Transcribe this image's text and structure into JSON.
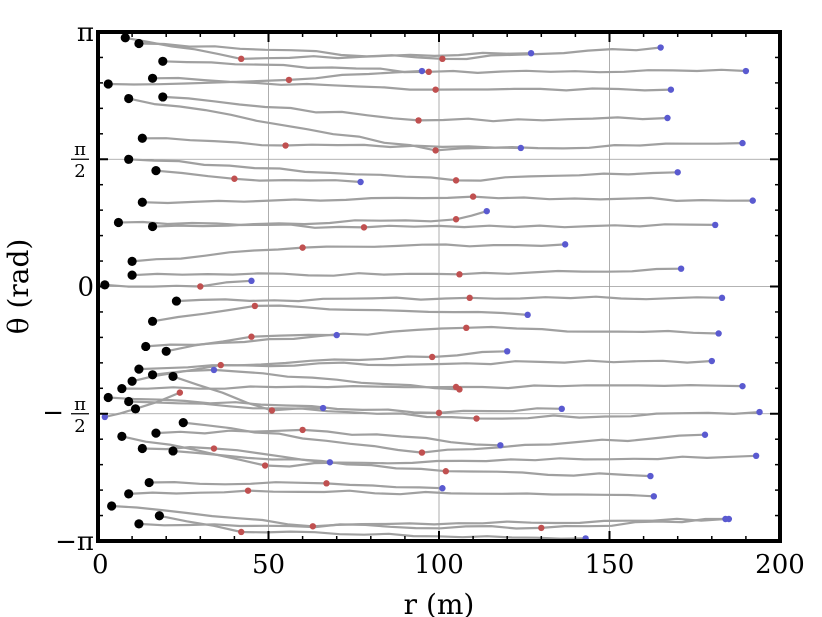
{
  "chart_data": {
    "type": "line",
    "xlabel": "r (m)",
    "ylabel": "θ (rad)",
    "xlim": [
      0,
      200
    ],
    "ylim": [
      -3.14159,
      3.14159
    ],
    "grid": true,
    "x_ticks": [
      {
        "value": 0,
        "label": "0"
      },
      {
        "value": 50,
        "label": "50"
      },
      {
        "value": 100,
        "label": "100"
      },
      {
        "value": 150,
        "label": "150"
      },
      {
        "value": 200,
        "label": "200"
      }
    ],
    "y_ticks": [
      {
        "value": 3.14159,
        "label": "π"
      },
      {
        "value": 1.5708,
        "label": "π/2",
        "num": "π",
        "den": "2"
      },
      {
        "value": 0,
        "label": "0"
      },
      {
        "value": -1.5708,
        "label": "−π/2",
        "num": "π",
        "den": "2",
        "sign": "−"
      },
      {
        "value": -3.14159,
        "label": "−π"
      }
    ],
    "colors": {
      "trajectory": "#a0a0a0",
      "start": "#000000",
      "mid": "#c05050",
      "end": "#5a5ad0",
      "grid": "#9a9a9a"
    },
    "trajectories": [
      {
        "start": [
          8,
          3.07
        ],
        "mid": [
          42,
          2.81
        ],
        "end": [
          127,
          2.88
        ]
      },
      {
        "start": [
          12,
          3.0
        ],
        "mid": [
          101,
          2.81
        ],
        "end": [
          165,
          2.95
        ]
      },
      {
        "start": [
          19,
          2.78
        ],
        "mid": [
          97,
          2.65
        ],
        "end": [
          190,
          2.66
        ]
      },
      {
        "start": [
          16,
          2.57
        ],
        "mid": [
          99,
          2.43
        ],
        "end": [
          168,
          2.43
        ]
      },
      {
        "start": [
          3,
          2.5
        ],
        "mid": [
          56,
          2.55
        ],
        "end": [
          95,
          2.66
        ]
      },
      {
        "start": [
          19,
          2.34
        ],
        "mid": [
          94,
          2.05
        ],
        "end": [
          167,
          2.08
        ]
      },
      {
        "start": [
          9,
          2.32
        ],
        "mid": [
          99,
          1.68
        ],
        "end": [
          189,
          1.77
        ]
      },
      {
        "start": [
          13,
          1.83
        ],
        "mid": [
          55,
          1.74
        ],
        "end": [
          124,
          1.71
        ]
      },
      {
        "start": [
          9,
          1.57
        ],
        "mid": [
          105,
          1.31
        ],
        "end": [
          170,
          1.41
        ]
      },
      {
        "start": [
          17,
          1.43
        ],
        "mid": [
          40,
          1.33
        ],
        "end": [
          77,
          1.29
        ]
      },
      {
        "start": [
          13,
          1.04
        ],
        "mid": [
          110,
          1.11
        ],
        "end": [
          192,
          1.06
        ]
      },
      {
        "start": [
          16,
          0.74
        ],
        "mid": [
          105,
          0.83
        ],
        "end": [
          114,
          0.93
        ]
      },
      {
        "start": [
          6,
          0.79
        ],
        "mid": [
          78,
          0.73
        ],
        "end": [
          181,
          0.76
        ]
      },
      {
        "start": [
          10,
          0.31
        ],
        "mid": [
          60,
          0.48
        ],
        "end": [
          137,
          0.52
        ]
      },
      {
        "start": [
          10,
          0.14
        ],
        "mid": [
          106,
          0.15
        ],
        "end": [
          171,
          0.22
        ]
      },
      {
        "start": [
          2,
          0.02
        ],
        "mid": [
          30,
          0.0
        ],
        "end": [
          45,
          0.07
        ]
      },
      {
        "start": [
          23,
          -0.18
        ],
        "mid": [
          109,
          -0.14
        ],
        "end": [
          183,
          -0.14
        ]
      },
      {
        "start": [
          16,
          -0.43
        ],
        "mid": [
          46,
          -0.24
        ],
        "end": [
          126,
          -0.35
        ]
      },
      {
        "start": [
          14,
          -0.74
        ],
        "mid": [
          108,
          -0.51
        ],
        "end": [
          182,
          -0.58
        ]
      },
      {
        "start": [
          20,
          -0.8
        ],
        "mid": [
          45,
          -0.62
        ],
        "end": [
          70,
          -0.6
        ]
      },
      {
        "start": [
          12,
          -1.02
        ],
        "mid": [
          98,
          -0.87
        ],
        "end": [
          120,
          -0.8
        ]
      },
      {
        "start": [
          10,
          -1.17
        ],
        "mid": [
          36,
          -0.97
        ],
        "end": [
          180,
          -0.92
        ]
      },
      {
        "start": [
          7,
          -1.26
        ],
        "mid": [
          105,
          -1.24
        ],
        "end": [
          189,
          -1.23
        ]
      },
      {
        "start": [
          16,
          -1.09
        ],
        "mid": [
          106,
          -1.27
        ],
        "end": [
          34,
          -1.03
        ]
      },
      {
        "start": [
          22,
          -1.11
        ],
        "mid": [
          51,
          -1.53
        ],
        "end": [
          66,
          -1.5
        ]
      },
      {
        "start": [
          3,
          -1.37
        ],
        "mid": [
          100,
          -1.56
        ],
        "end": [
          136,
          -1.51
        ]
      },
      {
        "start": [
          9,
          -1.42
        ],
        "mid": [
          111,
          -1.63
        ],
        "end": [
          194,
          -1.55
        ]
      },
      {
        "start": [
          11,
          -1.51
        ],
        "mid": [
          24,
          -1.31
        ],
        "end": [
          2,
          -1.61
        ]
      },
      {
        "start": [
          25,
          -1.68
        ],
        "mid": [
          95,
          -2.05
        ],
        "end": [
          178,
          -1.83
        ]
      },
      {
        "start": [
          17,
          -1.81
        ],
        "mid": [
          60,
          -1.77
        ],
        "end": [
          118,
          -1.96
        ]
      },
      {
        "start": [
          7,
          -1.85
        ],
        "mid": [
          49,
          -2.21
        ],
        "end": [
          193,
          -2.09
        ]
      },
      {
        "start": [
          13,
          -2.0
        ],
        "mid": [
          34,
          -2.0
        ],
        "end": [
          68,
          -2.17
        ]
      },
      {
        "start": [
          22,
          -2.03
        ],
        "mid": [
          102,
          -2.28
        ],
        "end": [
          162,
          -2.34
        ]
      },
      {
        "start": [
          15,
          -2.42
        ],
        "mid": [
          67,
          -2.43
        ],
        "end": [
          101,
          -2.49
        ]
      },
      {
        "start": [
          9,
          -2.56
        ],
        "mid": [
          44,
          -2.52
        ],
        "end": [
          163,
          -2.59
        ]
      },
      {
        "start": [
          4,
          -2.71
        ],
        "mid": [
          63,
          -2.96
        ],
        "end": [
          184,
          -2.87
        ]
      },
      {
        "start": [
          18,
          -2.83
        ],
        "mid": [
          42,
          -3.03
        ],
        "end": [
          143,
          -3.11
        ]
      },
      {
        "start": [
          12,
          -2.93
        ],
        "mid": [
          130,
          -2.98
        ],
        "end": [
          185,
          -2.87
        ]
      }
    ]
  }
}
